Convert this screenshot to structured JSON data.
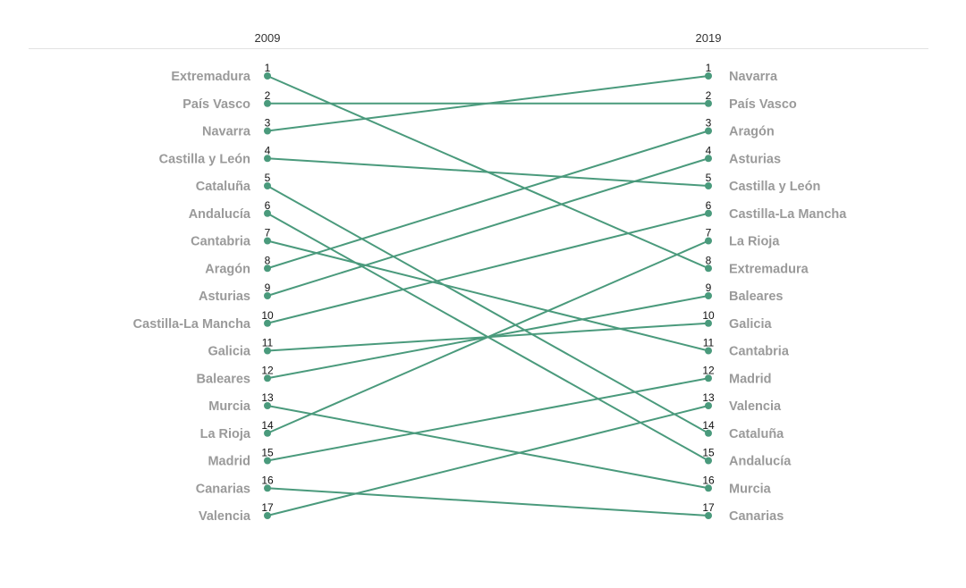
{
  "chart_data": {
    "type": "slope",
    "title": "",
    "columns": [
      "2009",
      "2019"
    ],
    "line_color": "#4a9a7c",
    "label_color": "#9a9a9a",
    "rank_color": "#111111",
    "left": [
      "Extremadura",
      "País Vasco",
      "Navarra",
      "Castilla y León",
      "Cataluña",
      "Andalucía",
      "Cantabria",
      "Aragón",
      "Asturias",
      "Castilla-La Mancha",
      "Galicia",
      "Baleares",
      "Murcia",
      "La Rioja",
      "Madrid",
      "Canarias",
      "Valencia"
    ],
    "right": [
      "Navarra",
      "País Vasco",
      "Aragón",
      "Asturias",
      "Castilla y León",
      "Castilla-La Mancha",
      "La Rioja",
      "Extremadura",
      "Baleares",
      "Galicia",
      "Cantabria",
      "Madrid",
      "Valencia",
      "Cataluña",
      "Andalucía",
      "Murcia",
      "Canarias"
    ],
    "left_ranks": [
      "1",
      "2",
      "3",
      "4",
      "5",
      "6",
      "7",
      "8",
      "9",
      "10",
      "11",
      "12",
      "13",
      "14",
      "15",
      "16",
      "17"
    ],
    "right_ranks": [
      "1",
      "2",
      "3",
      "4",
      "5",
      "6",
      "7",
      "8",
      "9",
      "10",
      "11",
      "12",
      "13",
      "14",
      "15",
      "16",
      "17"
    ]
  }
}
